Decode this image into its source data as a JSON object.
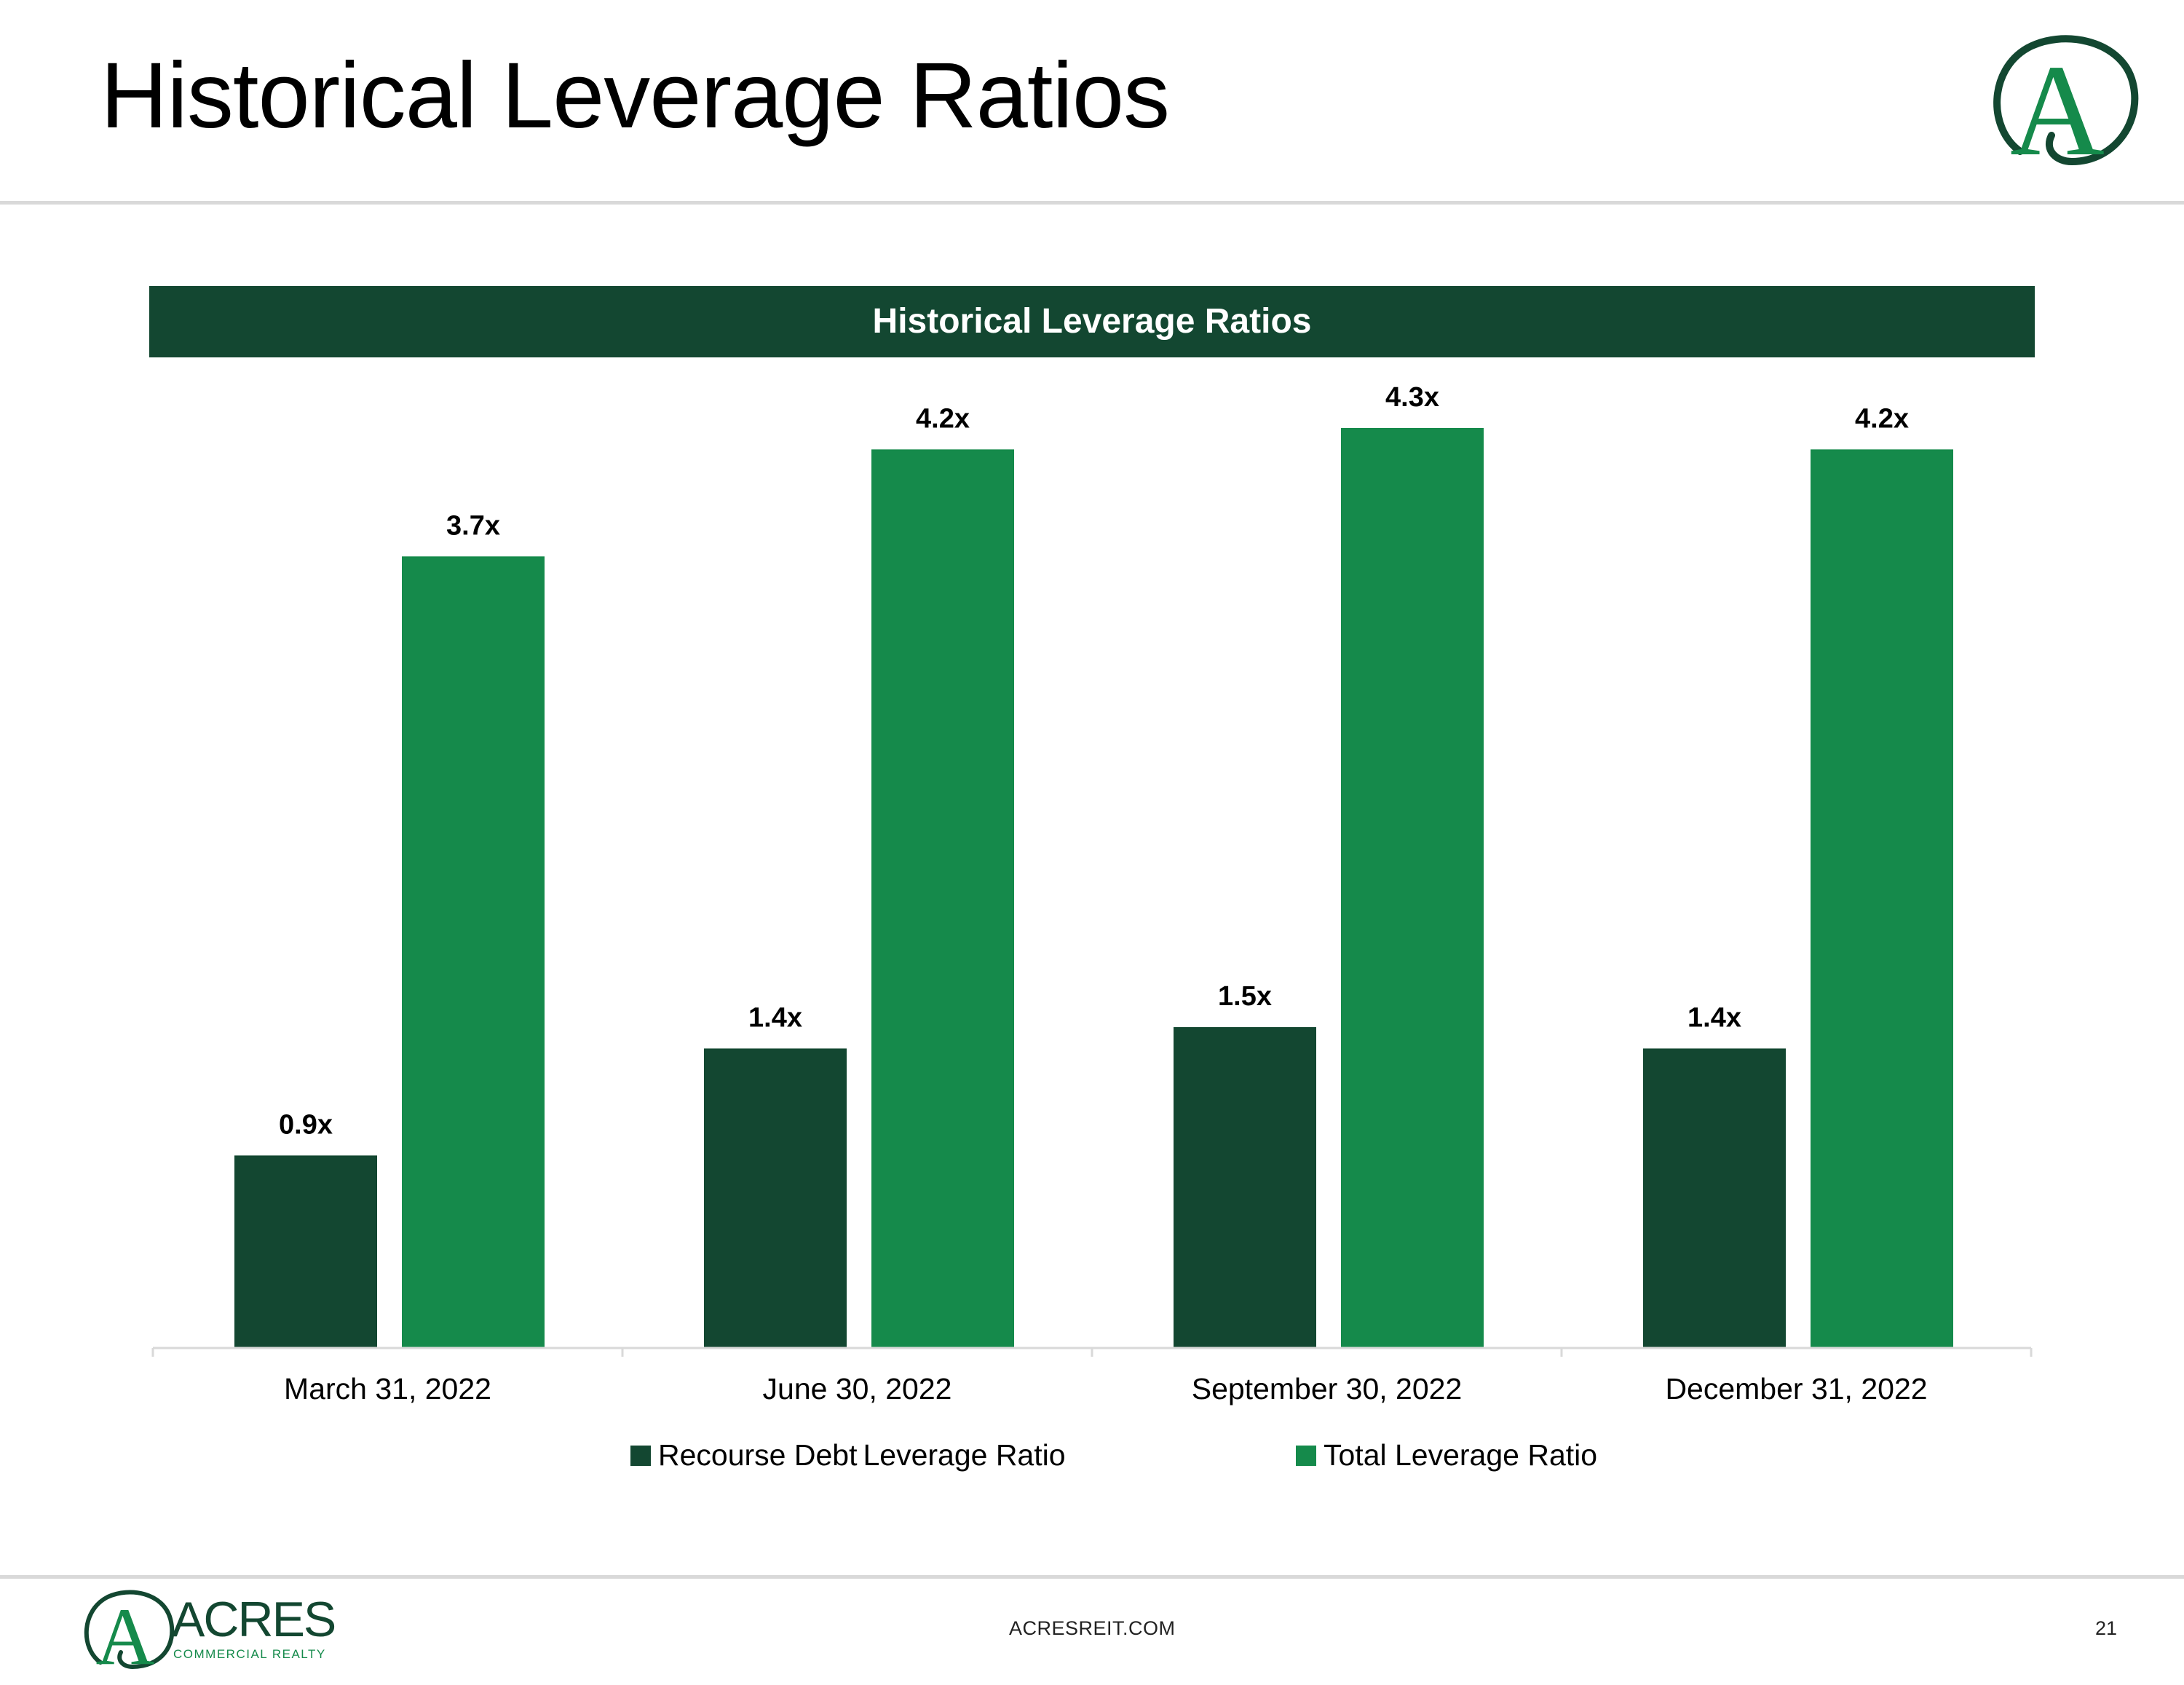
{
  "page": {
    "title": "Historical Leverage Ratios",
    "footer_url": "ACRESREIT.COM",
    "page_number": "21"
  },
  "brand": {
    "monogram": "A",
    "name": "ACRES",
    "tagline": "COMMERCIAL REALTY",
    "primary_color": "#134731",
    "accent_color": "#158A4B"
  },
  "legend": {
    "items": [
      {
        "label_left": "Recourse Debt",
        "label_right": "Leverage Ratio",
        "color": "#134731"
      },
      {
        "label": "Total Leverage Ratio",
        "color": "#158A4B"
      }
    ]
  },
  "chart_data": {
    "type": "bar",
    "title": "Historical Leverage Ratios",
    "xlabel": "",
    "ylabel": "",
    "ylim": [
      0,
      4.3
    ],
    "grid": false,
    "legend_position": "bottom",
    "categories": [
      "March 31, 2022",
      "June 30, 2022",
      "September 30, 2022",
      "December 31, 2022"
    ],
    "series": [
      {
        "name": "Recourse Debt Leverage Ratio",
        "color": "#134731",
        "values": [
          0.9,
          1.4,
          1.5,
          1.4
        ],
        "labels": [
          "0.9x",
          "1.4x",
          "1.5x",
          "1.4x"
        ]
      },
      {
        "name": "Total Leverage Ratio",
        "color": "#158A4B",
        "values": [
          3.7,
          4.2,
          4.3,
          4.2
        ],
        "labels": [
          "3.7x",
          "4.2x",
          "4.3x",
          "4.2x"
        ]
      }
    ]
  }
}
